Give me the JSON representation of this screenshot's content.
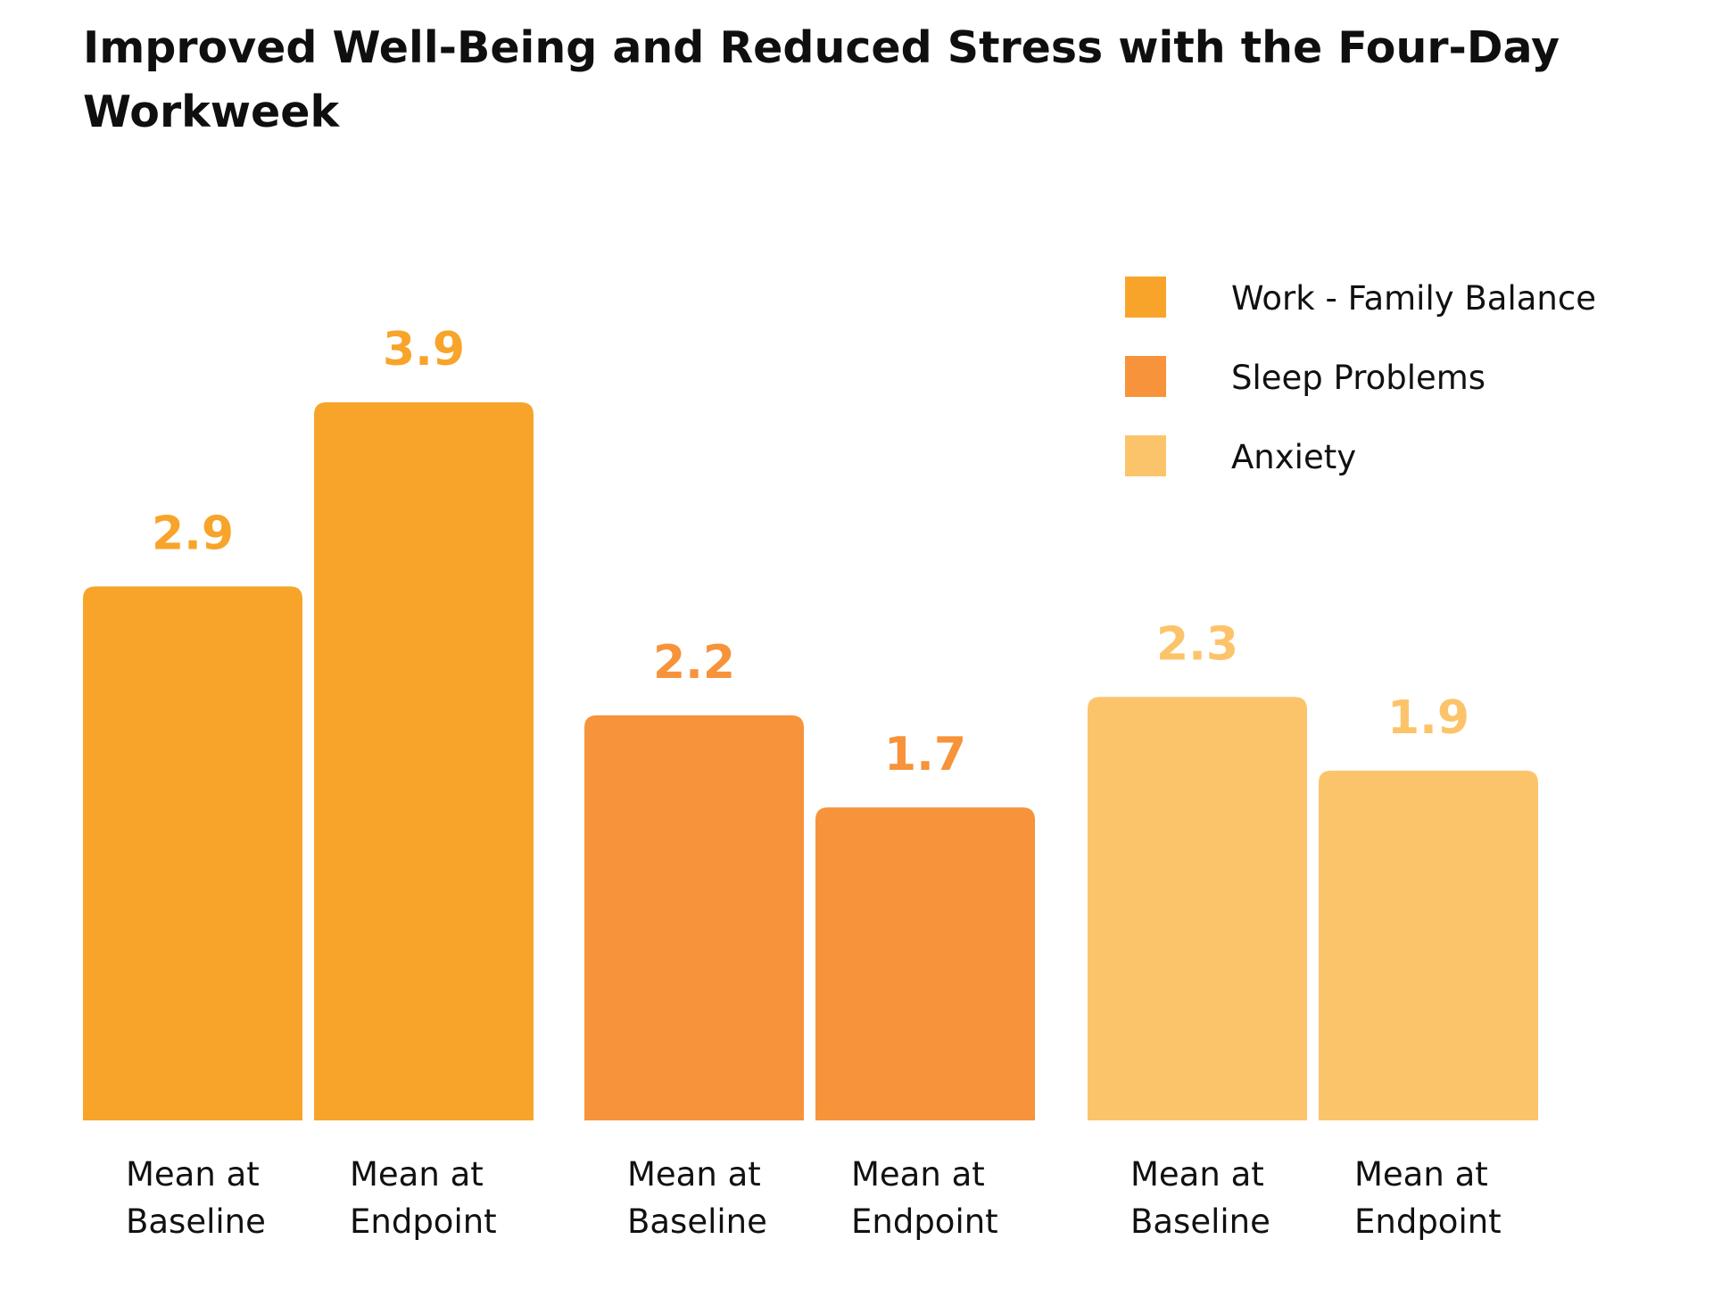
{
  "chart_data": {
    "type": "bar",
    "title": "Improved Well-Being and Reduced Stress with the Four-Day Workweek",
    "categories": [
      [
        "Mean at",
        "Baseline"
      ],
      [
        "Mean at",
        "Endpoint"
      ]
    ],
    "series": [
      {
        "name": "Work - Family Balance",
        "color": "#F8A42A",
        "values": [
          2.9,
          3.9
        ]
      },
      {
        "name": "Sleep Problems",
        "color": "#F7933A",
        "values": [
          2.2,
          1.7
        ]
      },
      {
        "name": "Anxiety",
        "color": "#FCC46A",
        "values": [
          2.3,
          1.9
        ]
      }
    ],
    "ylim": [
      0,
      3.9
    ],
    "grid": false,
    "legend_position": "top-right",
    "xlabel": "",
    "ylabel": ""
  }
}
